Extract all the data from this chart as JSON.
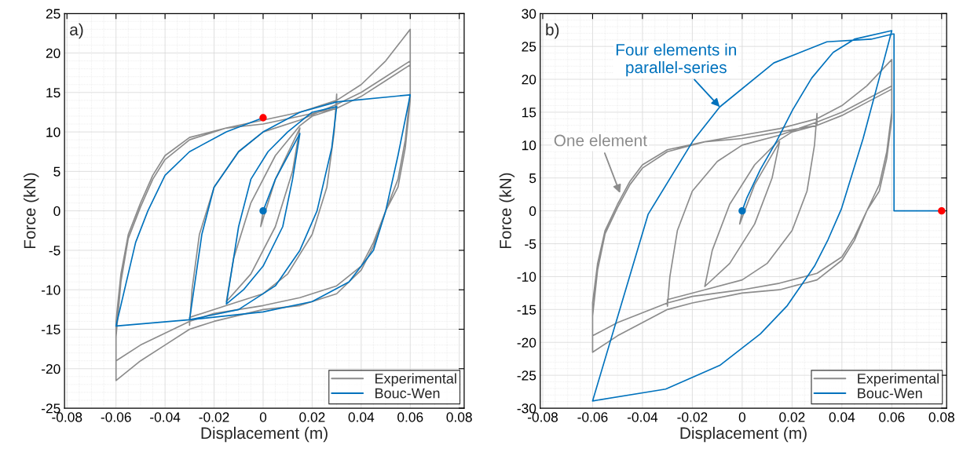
{
  "chart_data": [
    {
      "type": "line",
      "xlabel": "Displacement (m)",
      "ylabel": "Force (kN)",
      "annotations": [
        "a)"
      ],
      "xlim": [
        -0.081,
        0.082
      ],
      "ylim": [
        -25,
        25
      ],
      "xticks": [
        -0.08,
        -0.06,
        -0.04,
        -0.02,
        0,
        0.02,
        0.04,
        0.06,
        0.08
      ],
      "yticks": [
        -25,
        -20,
        -15,
        -10,
        -5,
        0,
        5,
        10,
        15,
        20,
        25
      ],
      "grid": true,
      "legend": "bottom right",
      "series": [
        {
          "name": "Experimental",
          "color": "#8c8c8c",
          "x": [
            0,
            -0.001,
            0.005,
            0.015,
            0.012,
            0.005,
            -0.005,
            -0.015,
            -0.012,
            -0.005,
            0.005,
            0.015,
            0.02,
            0.03,
            0.03,
            0.029,
            0.026,
            0.02,
            0.01,
            0,
            -0.015,
            -0.03,
            -0.03,
            -0.029,
            -0.026,
            -0.02,
            -0.01,
            0,
            0.015,
            0.03,
            0.04,
            0.05,
            0.06,
            0.06,
            0.058,
            0.055,
            0.05,
            0.045,
            0.04,
            0.03,
            0.015,
            0,
            -0.02,
            -0.03,
            -0.04,
            -0.05,
            -0.06,
            -0.06,
            -0.058,
            -0.055,
            -0.05,
            -0.045,
            -0.04,
            -0.03,
            -0.015,
            0,
            0.015,
            0.03,
            0.04,
            0.05,
            0.06,
            0.06,
            0.058,
            0.055,
            0.05,
            0.045,
            0.04,
            0.03,
            0.015,
            0,
            -0.02,
            -0.03,
            -0.04,
            -0.05,
            -0.06,
            -0.06,
            -0.058,
            -0.055,
            -0.05,
            -0.045,
            -0.04,
            -0.03,
            -0.015,
            0,
            0.015,
            0.03,
            0.04,
            0.05,
            0.06
          ],
          "values": [
            0,
            -2,
            4,
            10.5,
            5,
            -2,
            -8,
            -11.5,
            -6,
            1,
            7,
            10.8,
            12,
            13,
            14.8,
            10,
            3,
            -3,
            -8,
            -10.5,
            -12,
            -13.5,
            -14.5,
            -10,
            -3,
            3,
            7.5,
            10,
            11.5,
            13.5,
            15,
            17,
            19,
            14,
            8,
            3,
            0,
            -4,
            -7,
            -9.5,
            -11,
            -12,
            -13,
            -14,
            -15.5,
            -17,
            -19,
            -14,
            -8,
            -3,
            1,
            4.5,
            7,
            9.3,
            10.5,
            11.5,
            12.5,
            14,
            16,
            19,
            23,
            15,
            9,
            4,
            0,
            -4.5,
            -7.5,
            -10.5,
            -12,
            -12.5,
            -14,
            -15,
            -17,
            -19,
            -21.5,
            -16,
            -9,
            -3.5,
            0.5,
            4,
            6.5,
            9,
            10.5,
            11,
            12,
            13,
            14.5,
            16.5,
            18.5
          ]
        },
        {
          "name": "Bouc-Wen",
          "color": "#0072bd",
          "x": [
            0,
            0.005,
            0.015,
            0.012,
            0.008,
            0,
            -0.008,
            -0.015,
            -0.01,
            -0.005,
            0.002,
            0.01,
            0.02,
            0.03,
            0.028,
            0.022,
            0.015,
            0.005,
            -0.01,
            -0.03,
            -0.025,
            -0.02,
            -0.01,
            0,
            0.015,
            0.03,
            0.06,
            0.055,
            0.05,
            0.045,
            0.035,
            0.02,
            0,
            -0.03,
            -0.06,
            -0.052,
            -0.047,
            -0.04,
            -0.03,
            -0.015,
            0
          ],
          "values": [
            0,
            4,
            9.8,
            4,
            -2,
            -7,
            -10,
            -11.8,
            -2,
            4,
            7.5,
            10,
            12.5,
            13.2,
            8,
            0,
            -5,
            -9.5,
            -12.5,
            -13.8,
            -3,
            3,
            7.5,
            10,
            12.5,
            13.8,
            14.7,
            7,
            0,
            -5,
            -9,
            -11.5,
            -12.8,
            -13.8,
            -14.6,
            -4,
            0,
            4.5,
            7.5,
            10,
            11.8
          ]
        },
        {
          "type": "scatter",
          "color": "#0072bd",
          "x": [
            0
          ],
          "values": [
            0
          ]
        },
        {
          "type": "scatter",
          "color": "#ff0000",
          "x": [
            0
          ],
          "values": [
            11.8
          ]
        }
      ]
    },
    {
      "type": "line",
      "xlabel": "Displacement (m)",
      "ylabel": "Force (kN)",
      "annotations": [
        "b)",
        {
          "text": "Four elements in\nparallel-series",
          "x": -0.009,
          "y": 15.8
        },
        {
          "text": "One element",
          "x": -0.049,
          "y": 2.7
        }
      ],
      "xlim": [
        -0.081,
        0.082
      ],
      "ylim": [
        -30,
        30
      ],
      "xticks": [
        -0.08,
        -0.06,
        -0.04,
        -0.02,
        0,
        0.02,
        0.04,
        0.06,
        0.08
      ],
      "yticks": [
        -30,
        -25,
        -20,
        -15,
        -10,
        -5,
        0,
        5,
        10,
        15,
        20,
        25,
        30
      ],
      "grid": true,
      "legend": "bottom right",
      "series": [
        {
          "name": "Experimental",
          "color": "#8c8c8c",
          "x": [
            0,
            -0.001,
            0.005,
            0.015,
            0.012,
            0.005,
            -0.005,
            -0.015,
            -0.012,
            -0.005,
            0.005,
            0.015,
            0.02,
            0.03,
            0.03,
            0.029,
            0.026,
            0.02,
            0.01,
            0,
            -0.015,
            -0.03,
            -0.03,
            -0.029,
            -0.026,
            -0.02,
            -0.01,
            0,
            0.015,
            0.03,
            0.04,
            0.05,
            0.06,
            0.06,
            0.058,
            0.055,
            0.05,
            0.045,
            0.04,
            0.03,
            0.015,
            0,
            -0.02,
            -0.03,
            -0.04,
            -0.05,
            -0.06,
            -0.06,
            -0.058,
            -0.055,
            -0.05,
            -0.045,
            -0.04,
            -0.03,
            -0.015,
            0,
            0.015,
            0.03,
            0.04,
            0.05,
            0.06,
            0.06,
            0.058,
            0.055,
            0.05,
            0.045,
            0.04,
            0.03,
            0.015,
            0,
            -0.02,
            -0.03,
            -0.04,
            -0.05,
            -0.06,
            -0.06,
            -0.058,
            -0.055,
            -0.05,
            -0.045,
            -0.04,
            -0.03,
            -0.015,
            0,
            0.015,
            0.03,
            0.04,
            0.05,
            0.06
          ],
          "values": [
            0,
            -2,
            4,
            10.5,
            5,
            -2,
            -8,
            -11.5,
            -6,
            1,
            7,
            10.8,
            12,
            13,
            14.8,
            10,
            3,
            -3,
            -8,
            -10.5,
            -12,
            -13.5,
            -14.5,
            -10,
            -3,
            3,
            7.5,
            10,
            11.5,
            13.5,
            15,
            17,
            19,
            14,
            8,
            3,
            0,
            -4,
            -7,
            -9.5,
            -11,
            -12,
            -13,
            -14,
            -15.5,
            -17,
            -19,
            -14,
            -8,
            -3,
            1,
            4.5,
            7,
            9.3,
            10.5,
            11.5,
            12.5,
            14,
            16,
            19,
            23,
            15,
            9,
            4,
            0,
            -4.5,
            -7.5,
            -10.5,
            -12,
            -12.5,
            -14,
            -15,
            -17,
            -19,
            -21.5,
            -16,
            -9,
            -3.5,
            0.5,
            4,
            6.5,
            9,
            10.5,
            11,
            12,
            13,
            14.5,
            16.5,
            18.5
          ]
        },
        {
          "name": "Bouc-Wen",
          "color": "#0072bd",
          "x": [
            0,
            0.0018,
            0.0073,
            0.0138,
            0.0203,
            0.0279,
            0.0365,
            0.045,
            0.06,
            0.055,
            0.0485,
            0.0398,
            0.0344,
            0.029,
            0.0181,
            0.0073,
            -0.009,
            -0.0307,
            -0.06,
            -0.0377,
            -0.0198,
            -0.009,
            0.0127,
            0.034,
            0.0517,
            0.0605,
            0.0609,
            0.0609,
            0.08
          ],
          "values": [
            0,
            1.9,
            6.3,
            10.6,
            15.4,
            20.2,
            24.1,
            26.1,
            27.4,
            20.2,
            11,
            0.3,
            -4.4,
            -8.4,
            -14.4,
            -18.7,
            -23.5,
            -27.1,
            -28.9,
            -0.5,
            10.6,
            15.8,
            22.5,
            25.7,
            26.1,
            26.9,
            26.9,
            0,
            0
          ]
        },
        {
          "type": "scatter",
          "color": "#0072bd",
          "x": [
            0
          ],
          "values": [
            0
          ]
        },
        {
          "type": "scatter",
          "color": "#ff0000",
          "x": [
            0.08
          ],
          "values": [
            0
          ]
        }
      ]
    }
  ]
}
